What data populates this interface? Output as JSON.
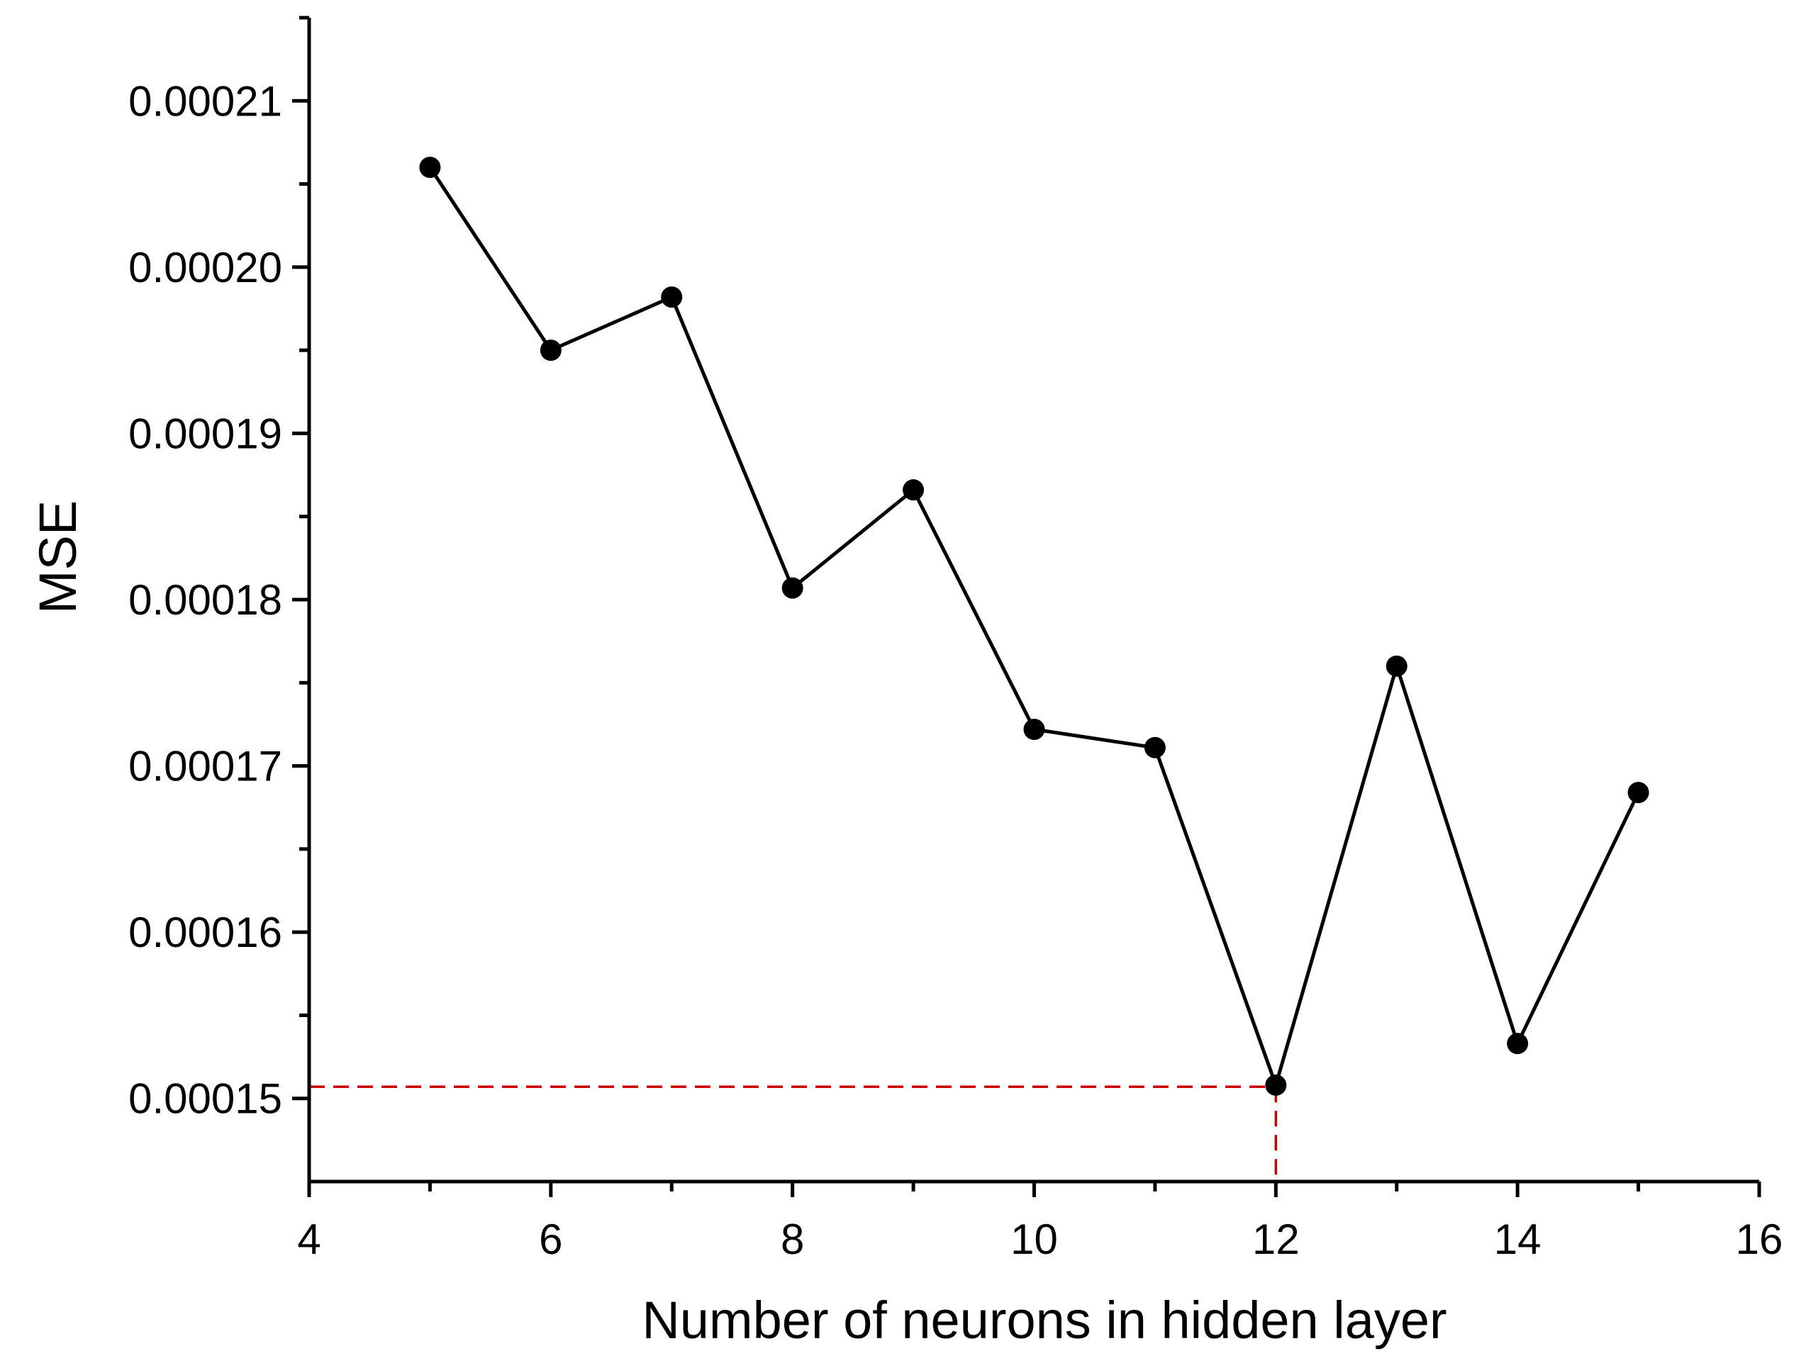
{
  "chart_data": {
    "type": "line",
    "title": "",
    "xlabel": "Number of neurons in hidden layer",
    "ylabel": "MSE",
    "xlim": [
      4,
      16
    ],
    "ylim": [
      0.000145,
      0.000215
    ],
    "x_ticks": [
      4,
      6,
      8,
      10,
      12,
      14,
      16
    ],
    "x_tick_labels": [
      "4",
      "6",
      "8",
      "10",
      "12",
      "14",
      "16"
    ],
    "x_minor_ticks": [
      5,
      7,
      9,
      11,
      13,
      15
    ],
    "y_ticks": [
      0.00015,
      0.00016,
      0.00017,
      0.00018,
      0.00019,
      0.0002,
      0.00021
    ],
    "y_tick_labels": [
      "0.00015",
      "0.00016",
      "0.00017",
      "0.00018",
      "0.00019",
      "0.00020",
      "0.00021"
    ],
    "y_minor_ticks": [
      0.000155,
      0.000165,
      0.000175,
      0.000185,
      0.000195,
      0.000205
    ],
    "grid": false,
    "legend": "none",
    "series": [
      {
        "x": [
          5,
          6,
          7,
          8,
          9,
          10,
          11,
          12,
          13,
          14,
          15
        ],
        "values": [
          0.000206,
          0.000195,
          0.0001982,
          0.0001807,
          0.0001866,
          0.0001722,
          0.0001711,
          0.0001508,
          0.000176,
          0.0001533,
          0.0001684
        ],
        "color": "#000000",
        "marker": "circle"
      }
    ],
    "annotations": [
      {
        "type": "dashed-reference",
        "x": 12,
        "y": 0.0001507,
        "color": "#cc0000"
      }
    ]
  }
}
